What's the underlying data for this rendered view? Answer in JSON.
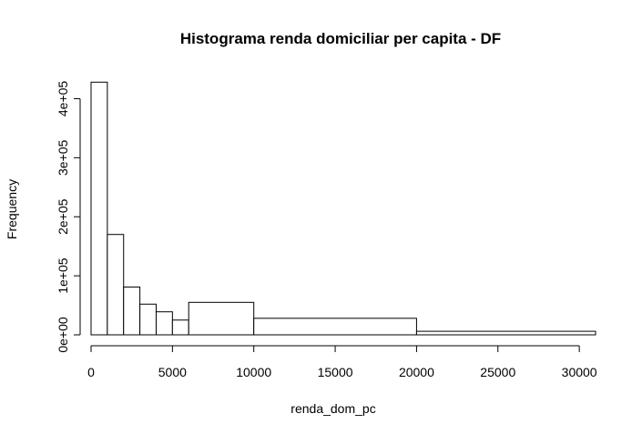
{
  "chart_data": {
    "type": "histogram",
    "title": "Histograma renda domiciliar per capita - DF",
    "xlabel": "renda_dom_pc",
    "ylabel": "Frequency",
    "xlim": [
      0,
      31000
    ],
    "ylim": [
      0,
      430000
    ],
    "x_ticks": [
      0,
      5000,
      10000,
      15000,
      20000,
      25000,
      30000
    ],
    "x_tick_labels": [
      "0",
      "5000",
      "10000",
      "15000",
      "20000",
      "25000",
      "30000"
    ],
    "y_ticks": [
      0,
      100000,
      200000,
      300000,
      400000
    ],
    "y_tick_labels": [
      "0e+00",
      "1e+05",
      "2e+05",
      "3e+05",
      "4e+05"
    ],
    "bins": [
      {
        "from": 0,
        "to": 1000,
        "value": 428000
      },
      {
        "from": 1000,
        "to": 2000,
        "value": 170000
      },
      {
        "from": 2000,
        "to": 3000,
        "value": 81000
      },
      {
        "from": 3000,
        "to": 4000,
        "value": 52000
      },
      {
        "from": 4000,
        "to": 5000,
        "value": 39000
      },
      {
        "from": 5000,
        "to": 6000,
        "value": 25000
      },
      {
        "from": 6000,
        "to": 10000,
        "value": 55000
      },
      {
        "from": 10000,
        "to": 20000,
        "value": 28000
      },
      {
        "from": 20000,
        "to": 31000,
        "value": 6000
      }
    ],
    "grid": false,
    "legend": "none"
  }
}
